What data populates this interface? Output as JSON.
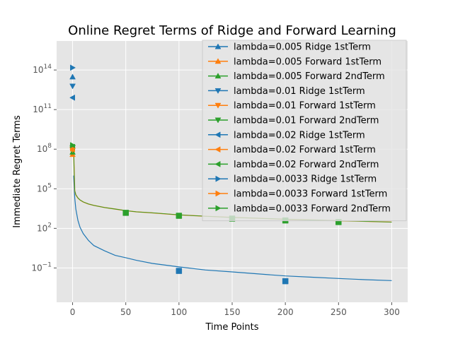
{
  "chart_data": {
    "type": "line",
    "title": "Online Regret Terms of Ridge and Forward Learning",
    "xlabel": "Time Points",
    "ylabel": "Immediate Regret Terms",
    "y_scale": "log",
    "xlim": [
      -15,
      315
    ],
    "ylim_exponent": [
      -3.6,
      16.2
    ],
    "grid": true,
    "legend_position": "top-right",
    "x_ticks": [
      0,
      50,
      100,
      150,
      200,
      250,
      300
    ],
    "x_tick_labels": [
      "0",
      "50",
      "100",
      "150",
      "200",
      "250",
      "300"
    ],
    "y_ticks": [
      0.1,
      100,
      100000,
      100000000,
      100000000000,
      100000000000000
    ],
    "y_tick_labels": [
      {
        "base": "10",
        "exp": "−1"
      },
      {
        "base": "10",
        "exp": "2"
      },
      {
        "base": "10",
        "exp": "5"
      },
      {
        "base": "10",
        "exp": "8"
      },
      {
        "base": "10",
        "exp": "11"
      },
      {
        "base": "10",
        "exp": "14"
      }
    ],
    "colors": {
      "ridge": "#1f77b4",
      "forward_first": "#ff7f0e",
      "forward_second": "#2ca02c"
    },
    "series": [
      {
        "name": "lambda=0.005 Ridge 1stTerm",
        "color": "#1f77b4",
        "marker": "triangle-up",
        "markers": [
          [
            0,
            30000000000000
          ]
        ]
      },
      {
        "name": "lambda=0.005 Forward 1stTerm",
        "color": "#ff7f0e",
        "marker": "triangle-up",
        "markers": [
          [
            0,
            40000000
          ]
        ]
      },
      {
        "name": "lambda=0.005 Forward 2ndTerm",
        "color": "#2ca02c",
        "marker": "triangle-up",
        "markers": [
          [
            0,
            60000000
          ]
        ]
      },
      {
        "name": "lambda=0.01 Ridge 1stTerm",
        "color": "#1f77b4",
        "marker": "triangle-down",
        "markers": [
          [
            0,
            6000000000000
          ]
        ]
      },
      {
        "name": "lambda=0.01 Forward 1stTerm",
        "color": "#ff7f0e",
        "marker": "triangle-down",
        "markers": [
          [
            0,
            90000000
          ]
        ]
      },
      {
        "name": "lambda=0.01 Forward 2ndTerm",
        "color": "#2ca02c",
        "marker": "triangle-down",
        "markers": [
          [
            0,
            130000000
          ]
        ]
      },
      {
        "name": "lambda=0.02 Ridge 1stTerm",
        "color": "#1f77b4",
        "marker": "triangle-left",
        "markers": [
          [
            0,
            800000000000
          ]
        ]
      },
      {
        "name": "lambda=0.02 Forward 1stTerm",
        "color": "#ff7f0e",
        "marker": "triangle-left",
        "markers": [
          [
            0,
            100000000
          ]
        ]
      },
      {
        "name": "lambda=0.02 Forward 2ndTerm",
        "color": "#2ca02c",
        "marker": "triangle-left",
        "markers": [
          [
            0,
            150000000
          ]
        ]
      },
      {
        "name": "lambda=0.0033 Ridge 1stTerm",
        "color": "#1f77b4",
        "marker": "triangle-right",
        "markers": [
          [
            0,
            150000000000000
          ]
        ]
      },
      {
        "name": "lambda=0.0033 Forward 1stTerm",
        "color": "#ff7f0e",
        "marker": "triangle-right",
        "markers": [
          [
            0,
            110000000
          ]
        ]
      },
      {
        "name": "lambda=0.0033 Forward 2ndTerm",
        "color": "#2ca02c",
        "marker": "triangle-right",
        "markers": [
          [
            0,
            200000000
          ]
        ]
      }
    ],
    "curves": [
      {
        "color": "#1f77b4",
        "width": 1.2,
        "points": [
          [
            1,
            1000000
          ],
          [
            2,
            20000
          ],
          [
            3,
            3000
          ],
          [
            5,
            400
          ],
          [
            7,
            120
          ],
          [
            10,
            40
          ],
          [
            15,
            12
          ],
          [
            20,
            5
          ],
          [
            30,
            2
          ],
          [
            40,
            0.9
          ],
          [
            50,
            0.6
          ],
          [
            60,
            0.38
          ],
          [
            75,
            0.22
          ],
          [
            100,
            0.12
          ],
          [
            125,
            0.07
          ],
          [
            150,
            0.05
          ],
          [
            175,
            0.035
          ],
          [
            200,
            0.025
          ],
          [
            225,
            0.02
          ],
          [
            250,
            0.016
          ],
          [
            275,
            0.013
          ],
          [
            300,
            0.011
          ]
        ]
      },
      {
        "color": "#ff7f0e",
        "width": 1.4,
        "points": [
          [
            1,
            90000000
          ],
          [
            2,
            70000
          ],
          [
            3,
            35000
          ],
          [
            5,
            20000
          ],
          [
            7,
            14000
          ],
          [
            10,
            10000
          ],
          [
            15,
            7000
          ],
          [
            20,
            5500
          ],
          [
            30,
            3800
          ],
          [
            40,
            2900
          ],
          [
            50,
            2200
          ],
          [
            60,
            1800
          ],
          [
            75,
            1500
          ],
          [
            100,
            1050
          ],
          [
            125,
            830
          ],
          [
            150,
            680
          ],
          [
            175,
            580
          ],
          [
            200,
            490
          ],
          [
            225,
            430
          ],
          [
            250,
            380
          ],
          [
            275,
            340
          ],
          [
            300,
            300
          ]
        ]
      },
      {
        "color": "#2ca02c",
        "width": 0.9,
        "points": [
          [
            1,
            100000000
          ],
          [
            2,
            72000
          ],
          [
            3,
            36000
          ],
          [
            5,
            20500
          ],
          [
            7,
            14200
          ],
          [
            10,
            10100
          ],
          [
            15,
            7050
          ],
          [
            20,
            5520
          ],
          [
            30,
            3820
          ],
          [
            40,
            2910
          ],
          [
            50,
            2210
          ],
          [
            60,
            1805
          ],
          [
            75,
            1505
          ],
          [
            100,
            1055
          ],
          [
            125,
            832
          ],
          [
            150,
            682
          ],
          [
            175,
            582
          ],
          [
            200,
            492
          ],
          [
            225,
            432
          ],
          [
            250,
            382
          ],
          [
            275,
            342
          ],
          [
            300,
            302
          ]
        ]
      }
    ],
    "square_markers": [
      {
        "color": "#2ca02c",
        "points": [
          [
            50,
            1500
          ],
          [
            100,
            900
          ],
          [
            150,
            550
          ],
          [
            200,
            400
          ],
          [
            250,
            300
          ]
        ]
      },
      {
        "color": "#1f77b4",
        "points": [
          [
            100,
            0.06
          ],
          [
            200,
            0.01
          ]
        ]
      }
    ]
  }
}
